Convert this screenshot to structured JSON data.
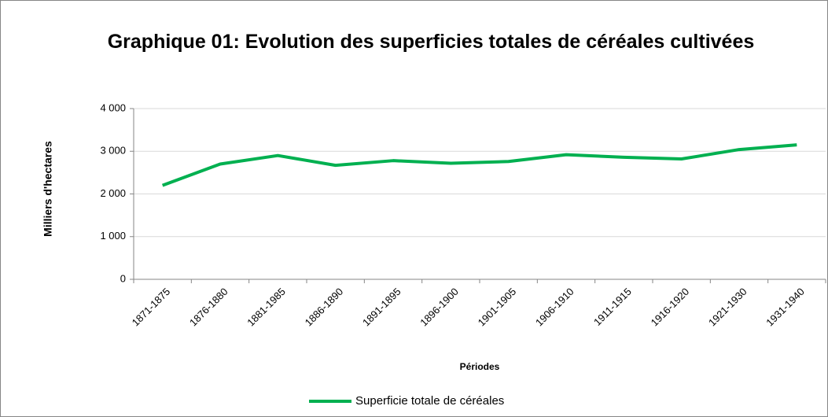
{
  "chart_data": {
    "type": "line",
    "title": "Graphique 01: Evolution des superficies totales de céréales cultivées",
    "x_label": "Périodes",
    "y_label": "Milliers d'hectares",
    "categories": [
      "1871-1875",
      "1876-1880",
      "1881-1985",
      "1886-1890",
      "1891-1895",
      "1896-1900",
      "1901-1905",
      "1906-1910",
      "1911-1915",
      "1916-1920",
      "1921-1930",
      "1931-1940"
    ],
    "series": [
      {
        "name": "Superficie totale de céréales",
        "color": "#00b050",
        "values": [
          2200,
          2700,
          2900,
          2670,
          2780,
          2720,
          2760,
          2920,
          2860,
          2820,
          3040,
          3150
        ]
      }
    ],
    "ylim": [
      0,
      4000
    ],
    "yticks": [
      0,
      {
        "value": 1000,
        "label": "1 000"
      },
      {
        "value": 2000,
        "label": "2 000"
      },
      {
        "value": 3000,
        "label": "3 000"
      },
      {
        "value": 4000,
        "label": "4 000"
      }
    ],
    "grid": true,
    "legend": "bottom"
  }
}
